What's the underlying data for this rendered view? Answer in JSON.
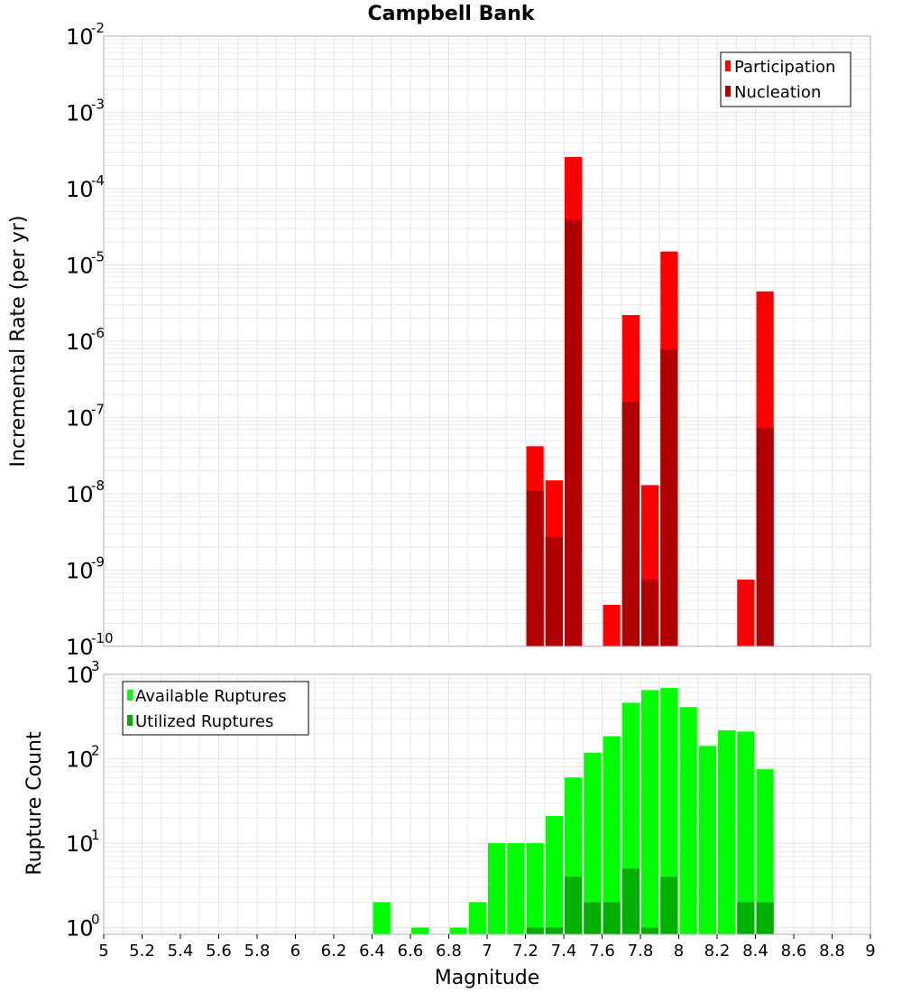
{
  "title": "Campbell Bank",
  "colors": {
    "participation": "#ff0000",
    "nucleation": "#b00000",
    "available": "#00ff00",
    "utilized": "#00b000",
    "grid": "#e6e6e6",
    "frame": "#b0b0b0"
  },
  "chart_data": [
    {
      "type": "bar",
      "title": "Campbell Bank",
      "xlabel": "Magnitude",
      "ylabel": "Incremental Rate (per yr)",
      "yscale": "log",
      "xlim": [
        5,
        9
      ],
      "ylim": [
        1e-10,
        0.01
      ],
      "yticks": [
        "-10",
        "-9",
        "-8",
        "-7",
        "-6",
        "-5",
        "-4",
        "-3",
        "-2"
      ],
      "grid": true,
      "legend_position": "top-right",
      "bar_width": 0.1,
      "series": [
        {
          "name": "Participation",
          "color": "#ff0000",
          "x": [
            7.25,
            7.35,
            7.45,
            7.65,
            7.75,
            7.85,
            7.95,
            8.35,
            8.45
          ],
          "values": [
            4.2e-08,
            1.5e-08,
            0.00026,
            3.5e-10,
            2.2e-06,
            1.3e-08,
            1.5e-05,
            7.5e-10,
            4.5e-06
          ]
        },
        {
          "name": "Nucleation",
          "color": "#b00000",
          "x": [
            7.25,
            7.35,
            7.45,
            7.75,
            7.85,
            7.95,
            8.45
          ],
          "values": [
            1.1e-08,
            2.7e-09,
            3.9e-05,
            1.6e-07,
            7.5e-10,
            7.8e-07,
            7.3e-08
          ]
        }
      ]
    },
    {
      "type": "bar",
      "xlabel": "Magnitude",
      "ylabel": "Rupture Count",
      "yscale": "log",
      "xlim": [
        5,
        9
      ],
      "yticks": [
        "0",
        "1",
        "2",
        "3"
      ],
      "xticks": [
        "5",
        "5.2",
        "5.4",
        "5.6",
        "5.8",
        "6",
        "6.2",
        "6.4",
        "6.6",
        "6.8",
        "7",
        "7.2",
        "7.4",
        "7.6",
        "7.8",
        "8",
        "8.2",
        "8.4",
        "8.6",
        "8.8",
        "9"
      ],
      "grid": true,
      "legend_position": "top-left",
      "bar_width": 0.1,
      "series": [
        {
          "name": "Available Ruptures",
          "color": "#00ff00",
          "x": [
            6.45,
            6.65,
            6.85,
            6.95,
            7.05,
            7.15,
            7.25,
            7.35,
            7.45,
            7.55,
            7.65,
            7.75,
            7.85,
            7.95,
            8.05,
            8.15,
            8.25,
            8.35,
            8.45
          ],
          "values": [
            2,
            1,
            1,
            2,
            10,
            10,
            10,
            21,
            60,
            118,
            185,
            460,
            650,
            690,
            410,
            142,
            217,
            210,
            75
          ]
        },
        {
          "name": "Utilized Ruptures",
          "color": "#00b000",
          "x": [
            7.25,
            7.35,
            7.45,
            7.55,
            7.65,
            7.75,
            7.85,
            7.95,
            8.35,
            8.45
          ],
          "values": [
            1,
            1,
            4,
            2,
            2,
            5,
            1,
            4,
            2,
            2
          ]
        }
      ]
    }
  ]
}
